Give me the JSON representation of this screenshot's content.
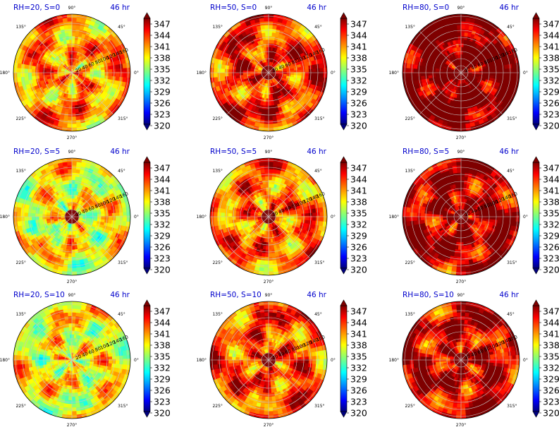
{
  "figure": {
    "time_label": "46 hr",
    "angle_labels": [
      "0°",
      "45°",
      "90°",
      "135°",
      "180°",
      "225°",
      "270°",
      "315°"
    ],
    "radial_ticks": [
      20,
      40,
      60,
      80,
      100,
      120,
      140,
      160
    ],
    "colorbar_ticks": [
      "347",
      "344",
      "341",
      "338",
      "335",
      "332",
      "329",
      "326",
      "323",
      "320"
    ],
    "colormap": "jet",
    "colormap_stops": [
      "#00007f",
      "#0000ff",
      "#00bfff",
      "#00ffff",
      "#7fff7f",
      "#ffff00",
      "#ff8000",
      "#ff0000",
      "#7f0000"
    ]
  },
  "chart_data": [
    {
      "type": "heatmap",
      "projection": "polar",
      "title": "RH=20, S=0",
      "annotation": "46 hr",
      "clim": [
        320,
        347
      ],
      "typical_value": 340,
      "core": "none"
    },
    {
      "type": "heatmap",
      "projection": "polar",
      "title": "RH=50, S=0",
      "annotation": "46 hr",
      "clim": [
        320,
        347
      ],
      "typical_value": 343,
      "core": "warm"
    },
    {
      "type": "heatmap",
      "projection": "polar",
      "title": "RH=80, S=0",
      "annotation": "46 hr",
      "clim": [
        320,
        347
      ],
      "typical_value": 348,
      "core": "warm"
    },
    {
      "type": "heatmap",
      "projection": "polar",
      "title": "RH=20, S=5",
      "annotation": "46 hr",
      "clim": [
        320,
        347
      ],
      "typical_value": 337,
      "core": "warm"
    },
    {
      "type": "heatmap",
      "projection": "polar",
      "title": "RH=50, S=5",
      "annotation": "46 hr",
      "clim": [
        320,
        347
      ],
      "typical_value": 341,
      "core": "warm"
    },
    {
      "type": "heatmap",
      "projection": "polar",
      "title": "RH=80, S=5",
      "annotation": "46 hr",
      "clim": [
        320,
        347
      ],
      "typical_value": 346,
      "core": "warm"
    },
    {
      "type": "heatmap",
      "projection": "polar",
      "title": "RH=20, S=10",
      "annotation": "46 hr",
      "clim": [
        320,
        347
      ],
      "typical_value": 337,
      "core": "none"
    },
    {
      "type": "heatmap",
      "projection": "polar",
      "title": "RH=50, S=10",
      "annotation": "46 hr",
      "clim": [
        320,
        347
      ],
      "typical_value": 342,
      "core": "warm"
    },
    {
      "type": "heatmap",
      "projection": "polar",
      "title": "RH=80, S=10",
      "annotation": "46 hr",
      "clim": [
        320,
        347
      ],
      "typical_value": 345,
      "core": "warm"
    }
  ]
}
